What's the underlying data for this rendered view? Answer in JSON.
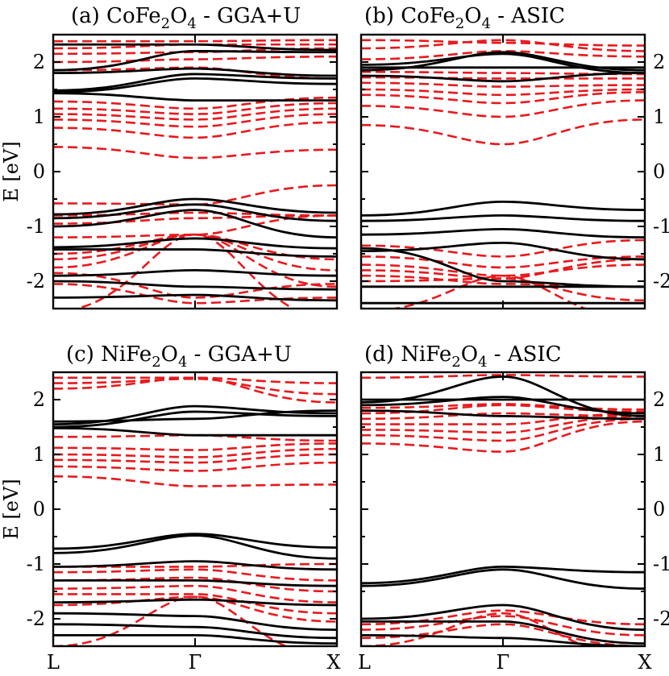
{
  "chart_data": {
    "type": "line",
    "ylabel": "E [eV]",
    "ylim": [
      -2.5,
      2.5
    ],
    "yticks": [
      -2,
      -1,
      0,
      1,
      2
    ],
    "ytick_labels": [
      "-2",
      "-1",
      "0",
      "1",
      "2"
    ],
    "x_points": [
      "L",
      "Γ",
      "X"
    ],
    "x_point_positions": [
      0,
      0.5,
      1
    ],
    "colors": {
      "solid": "#000000",
      "dashed": "#e8191d"
    },
    "panels": [
      {
        "title": {
          "prefix": "(a)  CoFe",
          "sub1": "2",
          "mid": "O",
          "sub2": "4",
          "suffix": " - GGA+U"
        },
        "yaxis_side": "left",
        "series": [
          {
            "style": "solid",
            "values": [
              1.48,
              1.78,
              1.7
            ]
          },
          {
            "style": "solid",
            "values": [
              1.45,
              1.7,
              1.6
            ]
          },
          {
            "style": "solid",
            "values": [
              1.43,
              1.3,
              1.3
            ]
          },
          {
            "style": "solid",
            "values": [
              1.85,
              2.2,
              2.18
            ]
          },
          {
            "style": "solid",
            "values": [
              2.32,
              2.32,
              2.22
            ]
          },
          {
            "style": "solid",
            "values": [
              1.8,
              1.88,
              1.75
            ]
          },
          {
            "style": "solid",
            "values": [
              -0.78,
              -0.5,
              -0.75
            ]
          },
          {
            "style": "solid",
            "values": [
              -0.85,
              -0.6,
              -0.9
            ]
          },
          {
            "style": "solid",
            "values": [
              -1.0,
              -0.7,
              -1.2
            ]
          },
          {
            "style": "solid",
            "values": [
              -1.38,
              -1.22,
              -1.4
            ]
          },
          {
            "style": "solid",
            "values": [
              -1.42,
              -1.42,
              -1.55
            ]
          },
          {
            "style": "solid",
            "values": [
              -1.9,
              -1.8,
              -1.9
            ]
          },
          {
            "style": "solid",
            "values": [
              -2.0,
              -2.1,
              -2.15
            ]
          },
          {
            "style": "solid",
            "values": [
              -2.3,
              -2.25,
              -2.35
            ]
          },
          {
            "style": "dashed",
            "values": [
              0.45,
              0.25,
              0.4
            ]
          },
          {
            "style": "dashed",
            "values": [
              0.8,
              0.62,
              0.9
            ]
          },
          {
            "style": "dashed",
            "values": [
              0.95,
              0.82,
              1.05
            ]
          },
          {
            "style": "dashed",
            "values": [
              1.05,
              0.95,
              1.15
            ]
          },
          {
            "style": "dashed",
            "values": [
              1.15,
              1.05,
              1.25
            ]
          },
          {
            "style": "dashed",
            "values": [
              1.28,
              1.15,
              1.35
            ]
          },
          {
            "style": "dashed",
            "values": [
              1.85,
              1.9,
              1.7
            ]
          },
          {
            "style": "dashed",
            "values": [
              2.0,
              2.05,
              2.1
            ]
          },
          {
            "style": "dashed",
            "values": [
              2.15,
              2.18,
              2.25
            ]
          },
          {
            "style": "dashed",
            "values": [
              2.25,
              2.32,
              2.32
            ]
          },
          {
            "style": "dashed",
            "values": [
              2.38,
              2.38,
              2.4
            ]
          },
          {
            "style": "dashed",
            "values": [
              -0.58,
              -0.6,
              -0.25
            ]
          },
          {
            "style": "dashed",
            "values": [
              -0.8,
              -0.75,
              -0.8
            ]
          },
          {
            "style": "dashed",
            "values": [
              -0.95,
              -0.85,
              -0.8
            ]
          },
          {
            "style": "dashed",
            "values": [
              -1.2,
              -1.15,
              -0.8
            ]
          },
          {
            "style": "dashed",
            "values": [
              -1.5,
              -1.15,
              -1.6
            ]
          },
          {
            "style": "dashed",
            "values": [
              -1.6,
              -1.15,
              -1.8
            ]
          },
          {
            "style": "dashed",
            "values": [
              -1.75,
              -1.15,
              -2.1
            ]
          },
          {
            "style": "dashed",
            "values": [
              -1.85,
              -2.3,
              -2.05
            ]
          },
          {
            "style": "dashed",
            "values": [
              -2.05,
              -2.4,
              -2.3
            ]
          },
          {
            "style": "dashed",
            "values": [
              -2.55,
              -1.15,
              -2.7
            ]
          }
        ]
      },
      {
        "title": {
          "prefix": "(b)  CoFe",
          "sub1": "2",
          "mid": "O",
          "sub2": "4",
          "suffix": " - ASIC"
        },
        "yaxis_side": "right",
        "series": [
          {
            "style": "solid",
            "values": [
              1.85,
              2.18,
              1.85
            ]
          },
          {
            "style": "solid",
            "values": [
              1.95,
              2.15,
              1.8
            ]
          },
          {
            "style": "solid",
            "values": [
              1.75,
              1.65,
              1.8
            ]
          },
          {
            "style": "solid",
            "values": [
              1.9,
              1.9,
              1.9
            ]
          },
          {
            "style": "solid",
            "values": [
              -0.8,
              -0.55,
              -0.7
            ]
          },
          {
            "style": "solid",
            "values": [
              -0.9,
              -0.8,
              -0.9
            ]
          },
          {
            "style": "solid",
            "values": [
              -1.15,
              -1.05,
              -1.2
            ]
          },
          {
            "style": "solid",
            "values": [
              -1.45,
              -1.3,
              -1.6
            ]
          },
          {
            "style": "solid",
            "values": [
              -1.4,
              -2.0,
              -2.1
            ]
          },
          {
            "style": "solid",
            "values": [
              -2.1,
              -2.1,
              -2.1
            ]
          },
          {
            "style": "solid",
            "values": [
              -2.4,
              -2.4,
              -2.4
            ]
          },
          {
            "style": "dashed",
            "values": [
              0.85,
              0.5,
              0.95
            ]
          },
          {
            "style": "dashed",
            "values": [
              1.2,
              1.0,
              1.3
            ]
          },
          {
            "style": "dashed",
            "values": [
              1.4,
              1.25,
              1.45
            ]
          },
          {
            "style": "dashed",
            "values": [
              1.5,
              1.4,
              1.5
            ]
          },
          {
            "style": "dashed",
            "values": [
              1.62,
              1.55,
              1.58
            ]
          },
          {
            "style": "dashed",
            "values": [
              1.72,
              1.7,
              1.7
            ]
          },
          {
            "style": "dashed",
            "values": [
              1.82,
              1.8,
              1.78
            ]
          },
          {
            "style": "dashed",
            "values": [
              2.05,
              2.2,
              2.1
            ]
          },
          {
            "style": "dashed",
            "values": [
              2.25,
              2.4,
              2.2
            ]
          },
          {
            "style": "dashed",
            "values": [
              2.4,
              2.35,
              2.3
            ]
          },
          {
            "style": "dashed",
            "values": [
              -1.35,
              -1.55,
              -1.25
            ]
          },
          {
            "style": "dashed",
            "values": [
              -1.55,
              -1.75,
              -1.55
            ]
          },
          {
            "style": "dashed",
            "values": [
              -1.7,
              -1.9,
              -1.7
            ]
          },
          {
            "style": "dashed",
            "values": [
              -1.8,
              -1.95,
              -1.6
            ]
          },
          {
            "style": "dashed",
            "values": [
              -1.9,
              -2.05,
              -2.1
            ]
          },
          {
            "style": "dashed",
            "values": [
              -2.0,
              -1.95,
              -2.35
            ]
          },
          {
            "style": "dashed",
            "values": [
              -2.55,
              -1.9,
              -2.7
            ]
          }
        ]
      },
      {
        "title": {
          "prefix": "(c)  NiFe",
          "sub1": "2",
          "mid": "O",
          "sub2": "4",
          "suffix": " - GGA+U"
        },
        "yaxis_side": "left",
        "series": [
          {
            "style": "solid",
            "values": [
              1.55,
              1.88,
              1.75
            ]
          },
          {
            "style": "solid",
            "values": [
              1.5,
              1.78,
              1.7
            ]
          },
          {
            "style": "solid",
            "values": [
              1.48,
              1.35,
              1.35
            ]
          },
          {
            "style": "solid",
            "values": [
              1.6,
              1.65,
              1.8
            ]
          },
          {
            "style": "solid",
            "values": [
              -0.72,
              -0.45,
              -0.7
            ]
          },
          {
            "style": "solid",
            "values": [
              -0.8,
              -0.48,
              -0.9
            ]
          },
          {
            "style": "solid",
            "values": [
              -1.05,
              -0.95,
              -1.1
            ]
          },
          {
            "style": "solid",
            "values": [
              -1.3,
              -1.3,
              -1.4
            ]
          },
          {
            "style": "solid",
            "values": [
              -1.7,
              -1.65,
              -1.75
            ]
          },
          {
            "style": "solid",
            "values": [
              -1.9,
              -1.95,
              -2.2
            ]
          },
          {
            "style": "solid",
            "values": [
              -2.1,
              -2.15,
              -2.35
            ]
          },
          {
            "style": "solid",
            "values": [
              -2.3,
              -2.3,
              -2.45
            ]
          },
          {
            "style": "dashed",
            "values": [
              0.6,
              0.42,
              0.45
            ]
          },
          {
            "style": "dashed",
            "values": [
              0.78,
              0.7,
              0.85
            ]
          },
          {
            "style": "dashed",
            "values": [
              0.9,
              0.85,
              1.0
            ]
          },
          {
            "style": "dashed",
            "values": [
              1.0,
              0.95,
              1.1
            ]
          },
          {
            "style": "dashed",
            "values": [
              1.12,
              1.08,
              1.2
            ]
          },
          {
            "style": "dashed",
            "values": [
              1.32,
              1.35,
              1.25
            ]
          },
          {
            "style": "dashed",
            "values": [
              2.2,
              2.4,
              1.95
            ]
          },
          {
            "style": "dashed",
            "values": [
              2.3,
              2.38,
              2.1
            ]
          },
          {
            "style": "dashed",
            "values": [
              2.4,
              2.4,
              2.3
            ]
          },
          {
            "style": "dashed",
            "values": [
              -1.05,
              -1.05,
              -1.0
            ]
          },
          {
            "style": "dashed",
            "values": [
              -1.15,
              -1.1,
              -1.3
            ]
          },
          {
            "style": "dashed",
            "values": [
              -1.3,
              -1.25,
              -1.5
            ]
          },
          {
            "style": "dashed",
            "values": [
              -1.45,
              -1.4,
              -1.7
            ]
          },
          {
            "style": "dashed",
            "values": [
              -1.55,
              -1.55,
              -1.9
            ]
          },
          {
            "style": "dashed",
            "values": [
              -1.75,
              -1.6,
              -2.05
            ]
          },
          {
            "style": "dashed",
            "values": [
              -2.5,
              -1.6,
              -2.7
            ]
          }
        ]
      },
      {
        "title": {
          "prefix": "(d)  NiFe",
          "sub1": "2",
          "mid": "O",
          "sub2": "4",
          "suffix": " - ASIC"
        },
        "yaxis_side": "right",
        "series": [
          {
            "style": "solid",
            "values": [
              1.95,
              2.42,
              1.7
            ]
          },
          {
            "style": "solid",
            "values": [
              1.9,
              2.05,
              1.75
            ]
          },
          {
            "style": "solid",
            "values": [
              1.8,
              1.7,
              1.65
            ]
          },
          {
            "style": "solid",
            "values": [
              2.0,
              2.0,
              2.0
            ]
          },
          {
            "style": "solid",
            "values": [
              -1.35,
              -1.05,
              -1.15
            ]
          },
          {
            "style": "solid",
            "values": [
              -1.4,
              -1.1,
              -1.45
            ]
          },
          {
            "style": "solid",
            "values": [
              -2.0,
              -1.75,
              -2.2
            ]
          },
          {
            "style": "solid",
            "values": [
              -2.05,
              -2.05,
              -2.45
            ]
          },
          {
            "style": "solid",
            "values": [
              -2.3,
              -2.35,
              -2.5
            ]
          },
          {
            "style": "dashed",
            "values": [
              1.2,
              1.05,
              1.6
            ]
          },
          {
            "style": "dashed",
            "values": [
              1.35,
              1.25,
              1.65
            ]
          },
          {
            "style": "dashed",
            "values": [
              1.45,
              1.4,
              1.7
            ]
          },
          {
            "style": "dashed",
            "values": [
              1.55,
              1.55,
              1.75
            ]
          },
          {
            "style": "dashed",
            "values": [
              1.65,
              1.75,
              1.7
            ]
          },
          {
            "style": "dashed",
            "values": [
              1.75,
              1.9,
              1.78
            ]
          },
          {
            "style": "dashed",
            "values": [
              1.85,
              1.92,
              1.82
            ]
          },
          {
            "style": "dashed",
            "values": [
              2.4,
              2.45,
              2.42
            ]
          },
          {
            "style": "dashed",
            "values": [
              -2.1,
              -1.85,
              -2.1
            ]
          },
          {
            "style": "dashed",
            "values": [
              -2.2,
              -1.95,
              -2.3
            ]
          },
          {
            "style": "dashed",
            "values": [
              -2.35,
              -2.1,
              -2.5
            ]
          },
          {
            "style": "dashed",
            "values": [
              -2.5,
              -1.9,
              -2.7
            ]
          }
        ]
      }
    ]
  }
}
